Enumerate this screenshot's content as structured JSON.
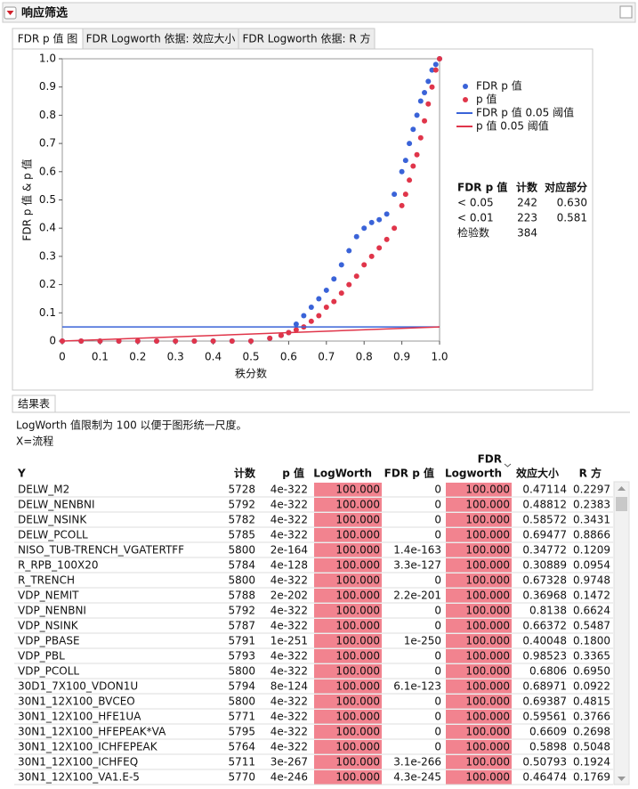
{
  "header": {
    "title": "响应筛选"
  },
  "tabs": [
    "FDR p 值 图",
    "FDR Logworth 依据: 效应大小",
    "FDR Logworth 依据: R 方"
  ],
  "chart_data": {
    "type": "scatter",
    "xlabel": "秩分数",
    "ylabel": "FDR p 值 & p 值",
    "xlim": [
      0,
      1
    ],
    "ylim": [
      0,
      1
    ],
    "xticks": [
      0,
      0.1,
      0.2,
      0.3,
      0.4,
      0.5,
      0.6,
      0.7,
      0.8,
      0.9,
      {
        "value": 1,
        "label": "1.0"
      }
    ],
    "yticks": [
      0,
      0.1,
      0.2,
      0.3,
      0.4,
      0.5,
      0.6,
      0.7,
      0.8,
      0.9,
      {
        "value": 1,
        "label": "1.0"
      }
    ],
    "legend": "right",
    "series": [
      {
        "name": "FDR p 值",
        "color": "#3a63d8",
        "x": [
          0,
          0.05,
          0.1,
          0.15,
          0.2,
          0.25,
          0.3,
          0.35,
          0.4,
          0.45,
          0.5,
          0.55,
          0.58,
          0.6,
          0.62,
          0.64,
          0.66,
          0.68,
          0.7,
          0.72,
          0.74,
          0.76,
          0.78,
          0.8,
          0.82,
          0.84,
          0.86,
          0.88,
          0.9,
          0.91,
          0.92,
          0.93,
          0.94,
          0.95,
          0.96,
          0.97,
          0.98,
          0.99,
          1
        ],
        "values": [
          0,
          0,
          0,
          0,
          0,
          0,
          0,
          0,
          0,
          0,
          0,
          0.01,
          0.02,
          0.03,
          0.06,
          0.09,
          0.12,
          0.15,
          0.18,
          0.22,
          0.27,
          0.32,
          0.37,
          0.4,
          0.42,
          0.43,
          0.45,
          0.52,
          0.6,
          0.64,
          0.7,
          0.75,
          0.8,
          0.85,
          0.88,
          0.92,
          0.96,
          0.98,
          1
        ]
      },
      {
        "name": "p 值",
        "color": "#e0354a",
        "x": [
          0,
          0.05,
          0.1,
          0.15,
          0.2,
          0.25,
          0.3,
          0.35,
          0.4,
          0.45,
          0.5,
          0.55,
          0.58,
          0.6,
          0.62,
          0.64,
          0.66,
          0.68,
          0.7,
          0.72,
          0.74,
          0.76,
          0.78,
          0.8,
          0.82,
          0.84,
          0.86,
          0.88,
          0.9,
          0.91,
          0.92,
          0.93,
          0.94,
          0.95,
          0.96,
          0.97,
          0.98,
          0.99,
          1
        ],
        "values": [
          0,
          0,
          0,
          0,
          0,
          0,
          0,
          0,
          0,
          0,
          0,
          0.01,
          0.02,
          0.03,
          0.04,
          0.05,
          0.07,
          0.09,
          0.12,
          0.14,
          0.17,
          0.2,
          0.23,
          0.27,
          0.3,
          0.33,
          0.36,
          0.4,
          0.48,
          0.52,
          0.57,
          0.62,
          0.66,
          0.72,
          0.78,
          0.84,
          0.9,
          0.96,
          1
        ]
      }
    ],
    "reference_lines": [
      {
        "name": "FDR p 值 0.05 阈值",
        "color": "#3a63d8",
        "x": [
          0,
          1
        ],
        "values": [
          0.05,
          0.05
        ]
      },
      {
        "name": "p 值 0.05 阈值",
        "color": "#e0354a",
        "x": [
          0,
          1
        ],
        "values": [
          0,
          0.05
        ]
      }
    ]
  },
  "summary": {
    "columns": [
      "FDR p 值",
      "计数",
      "对应部分"
    ],
    "rows": [
      [
        "< 0.05",
        "242",
        "0.630"
      ],
      [
        "< 0.01",
        "223",
        "0.581"
      ],
      [
        "检验数",
        "384"
      ]
    ]
  },
  "results_tab": "结果表",
  "notes": [
    "LogWorth 值限制为 100 以便于图形统一尺度。",
    "X=流程"
  ],
  "table": {
    "columns": [
      "Y",
      "计数",
      "p 值",
      "LogWorth",
      "FDR p 值",
      [
        "FDR",
        "Logworth"
      ],
      "效应大小",
      "R 方"
    ],
    "rows": [
      [
        "DELW_M2",
        "5728",
        "4e-322",
        "100.000",
        "0",
        "100.000",
        "0.47114",
        "0.2297"
      ],
      [
        "DELW_NENBNI",
        "5792",
        "4e-322",
        "100.000",
        "0",
        "100.000",
        "0.48812",
        "0.2383"
      ],
      [
        "DELW_NSINK",
        "5782",
        "4e-322",
        "100.000",
        "0",
        "100.000",
        "0.58572",
        "0.3431"
      ],
      [
        "DELW_PCOLL",
        "5785",
        "4e-322",
        "100.000",
        "0",
        "100.000",
        "0.69477",
        "0.8866"
      ],
      [
        "NISO_TUB-TRENCH_VGATERTFF",
        "5800",
        "2e-164",
        "100.000",
        "1.4e-163",
        "100.000",
        "0.34772",
        "0.1209"
      ],
      [
        "R_RPB_100X20",
        "5784",
        "4e-128",
        "100.000",
        "3.3e-127",
        "100.000",
        "0.30889",
        "0.0954"
      ],
      [
        "R_TRENCH",
        "5800",
        "4e-322",
        "100.000",
        "0",
        "100.000",
        "0.67328",
        "0.9748"
      ],
      [
        "VDP_NEMIT",
        "5788",
        "2e-202",
        "100.000",
        "2.2e-201",
        "100.000",
        "0.36968",
        "0.1472"
      ],
      [
        "VDP_NENBNI",
        "5792",
        "4e-322",
        "100.000",
        "0",
        "100.000",
        "0.8138",
        "0.6624"
      ],
      [
        "VDP_NSINK",
        "5787",
        "4e-322",
        "100.000",
        "0",
        "100.000",
        "0.66372",
        "0.5487"
      ],
      [
        "VDP_PBASE",
        "5791",
        "1e-251",
        "100.000",
        "1e-250",
        "100.000",
        "0.40048",
        "0.1800"
      ],
      [
        "VDP_PBL",
        "5793",
        "4e-322",
        "100.000",
        "0",
        "100.000",
        "0.98523",
        "0.3365"
      ],
      [
        "VDP_PCOLL",
        "5800",
        "4e-322",
        "100.000",
        "0",
        "100.000",
        "0.6806",
        "0.6950"
      ],
      [
        "30D1_7X100_VDON1U",
        "5794",
        "8e-124",
        "100.000",
        "6.1e-123",
        "100.000",
        "0.68971",
        "0.0922"
      ],
      [
        "30N1_12X100_BVCEO",
        "5800",
        "4e-322",
        "100.000",
        "0",
        "100.000",
        "0.69387",
        "0.4815"
      ],
      [
        "30N1_12X100_HFE1UA",
        "5771",
        "4e-322",
        "100.000",
        "0",
        "100.000",
        "0.59561",
        "0.3766"
      ],
      [
        "30N1_12X100_HFEPEAK*VA",
        "5795",
        "4e-322",
        "100.000",
        "0",
        "100.000",
        "0.6609",
        "0.2698"
      ],
      [
        "30N1_12X100_ICHFEPEAK",
        "5764",
        "4e-322",
        "100.000",
        "0",
        "100.000",
        "0.5898",
        "0.5048"
      ],
      [
        "30N1_12X100_ICHFEQ",
        "5711",
        "3e-267",
        "100.000",
        "3.1e-266",
        "100.000",
        "0.50793",
        "0.1924"
      ],
      [
        "30N1_12X100_VA1.E-5",
        "5770",
        "4e-246",
        "100.000",
        "4.3e-245",
        "100.000",
        "0.46474",
        "0.1769"
      ]
    ]
  }
}
